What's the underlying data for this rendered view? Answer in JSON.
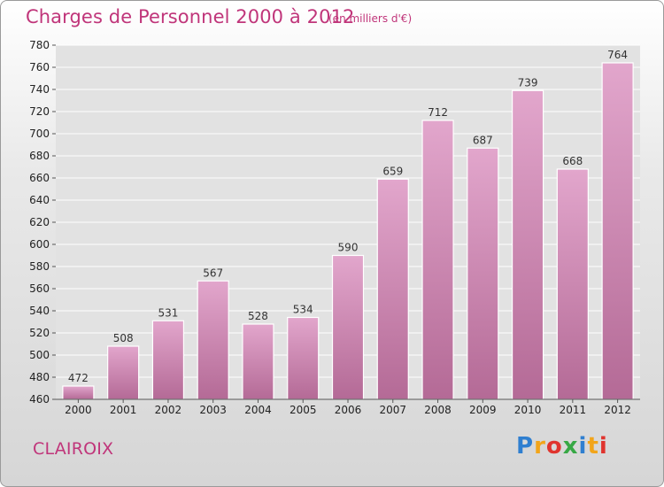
{
  "header": {
    "title": "Charges de Personnel 2000 à 2012",
    "subtitle": "(en milliers d'€)"
  },
  "footer": {
    "commune": "CLAIROIX",
    "brand": "Proxiti"
  },
  "colors": {
    "accent": "#c0357a",
    "bar_top": "#e2a6cc",
    "bar_bottom": "#b46a96"
  },
  "chart_data": {
    "type": "bar",
    "title": "Charges de Personnel 2000 à 2012",
    "subtitle": "(en milliers d'€)",
    "xlabel": "",
    "ylabel": "",
    "categories": [
      "2000",
      "2001",
      "2002",
      "2003",
      "2004",
      "2005",
      "2006",
      "2007",
      "2008",
      "2009",
      "2010",
      "2011",
      "2012"
    ],
    "values": [
      472,
      508,
      531,
      567,
      528,
      534,
      590,
      659,
      712,
      687,
      739,
      668,
      764
    ],
    "ylim": [
      460,
      780
    ],
    "ytick_step": 20,
    "grid": true,
    "legend": "none"
  }
}
